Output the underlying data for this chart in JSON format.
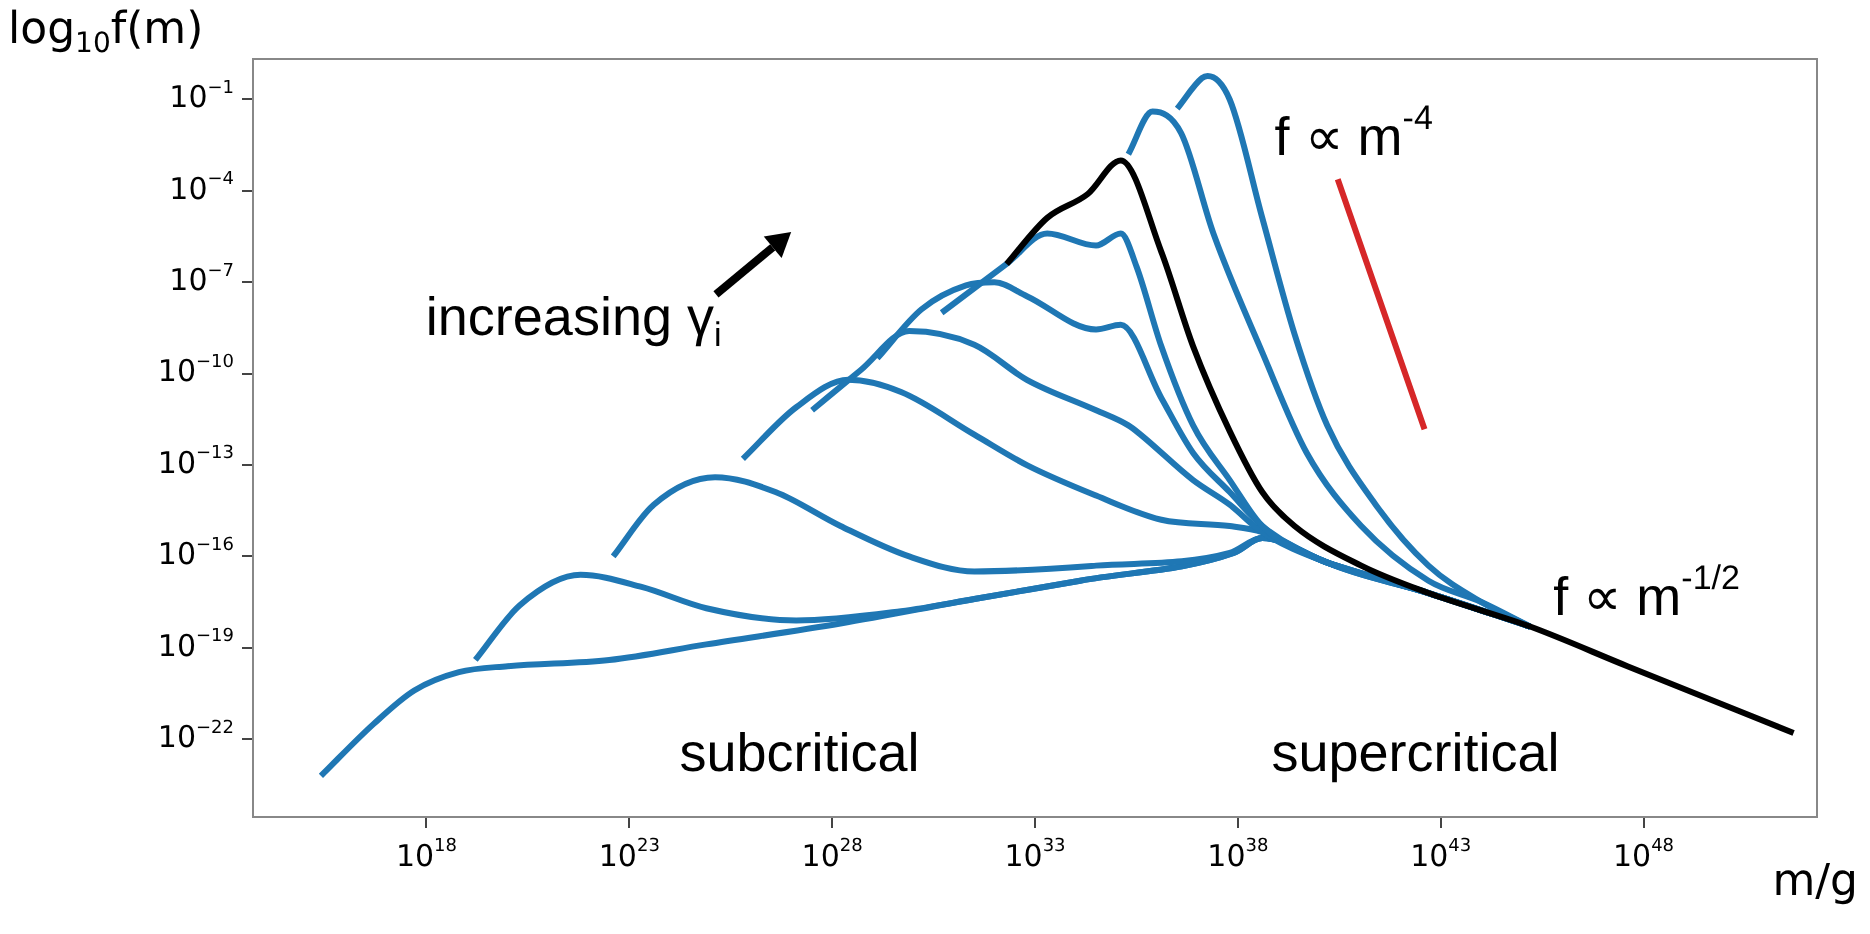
{
  "chart_data": {
    "type": "line",
    "log": "xy",
    "grid": false,
    "legend": false,
    "xlabel": "m/g",
    "ylabel": "log$_{10}$f(m)",
    "xlim": [
      50000000000000.0,
      2e+52
    ],
    "ylim": [
      2.6e-25,
      2.3
    ],
    "xticks": [
      {
        "value": 1e+18,
        "label": "10$^{18}$"
      },
      {
        "value": 1e+23,
        "label": "10$^{23}$"
      },
      {
        "value": 1e+28,
        "label": "10$^{28}$"
      },
      {
        "value": 1e+33,
        "label": "10$^{33}$"
      },
      {
        "value": 1e+38,
        "label": "10$^{38}$"
      },
      {
        "value": 1e+43,
        "label": "10$^{43}$"
      },
      {
        "value": 1e+48,
        "label": "10$^{48}$"
      }
    ],
    "yticks": [
      {
        "value": 0.1,
        "label": "10$^{−1}$"
      },
      {
        "value": 0.0001,
        "label": "10$^{−4}$"
      },
      {
        "value": 1e-07,
        "label": "10$^{−7}$"
      },
      {
        "value": 1e-10,
        "label": "10$^{−10}$"
      },
      {
        "value": 1e-13,
        "label": "10$^{−13}$"
      },
      {
        "value": 1e-16,
        "label": "10$^{−16}$"
      },
      {
        "value": 1e-19,
        "label": "10$^{−19}$"
      },
      {
        "value": 1e-22,
        "label": "10$^{−22}$"
      }
    ],
    "series": [
      {
        "color": "#1f77b4",
        "x": [
          2500000000000000.0,
          5e+16,
          5e+17,
          6.3e+18,
          1e+20,
          3.2e+22,
          7.9e+24,
          1.6e+28,
          3.2e+31,
          1.3e+34,
          7.9e+37,
          4e+38,
          1.6e+40,
          5e+42,
          1.6e+45
        ],
        "values": [
          6.3e-24,
          3.2e-22,
          4e-21,
          1.6e-20,
          2.5e-20,
          4e-20,
          1.3e-19,
          6.3e-19,
          4e-18,
          1.6e-17,
          1.3e-16,
          4e-16,
          6.3e-17,
          6.3e-18,
          5e-19
        ]
      },
      {
        "color": "#1f77b4",
        "x": [
          1.6e+19,
          2e+20,
          6.3e+21,
          2e+23,
          7.9e+24,
          1.3e+27,
          5e+29,
          3.2e+31,
          1.3e+34,
          7.9e+37,
          4e+38,
          1.6e+40,
          5e+42,
          1.6e+45
        ],
        "values": [
          4e-20,
          2.5e-18,
          2.5e-17,
          1e-17,
          2e-18,
          7.9e-19,
          1.6e-18,
          4e-18,
          1.6e-17,
          1.3e-16,
          4e-16,
          6.3e-17,
          6.3e-18,
          5e-19
        ]
      },
      {
        "color": "#1f77b4",
        "x": [
          4e+22,
          4e+23,
          1.3e+25,
          4e+26,
          1.6e+28,
          7.9e+29,
          3.2e+31,
          3.2e+34,
          6.3e+37,
          4e+38,
          1.6e+40,
          5e+42,
          1.6e+45
        ],
        "values": [
          1e-16,
          5e-15,
          4e-14,
          1.3e-14,
          1e-15,
          1e-16,
          3.2e-17,
          5e-17,
          1.3e-16,
          4e-16,
          6.3e-17,
          6.3e-18,
          5e-19
        ]
      },
      {
        "color": "#1f77b4",
        "x": [
          6.3e+25,
          1.3e+27,
          2.5e+28,
          5e+29,
          3.2e+31,
          6.3e+32,
          3.2e+34,
          1.3e+36,
          6.3e+37,
          4e+38,
          1.6e+40,
          5e+42,
          1.6e+45
        ],
        "values": [
          1.6e-13,
          7.9e-12,
          6.3e-11,
          2.5e-11,
          1e-12,
          1e-13,
          1e-14,
          1.6e-15,
          1e-15,
          6.3e-16,
          6.3e-17,
          6.3e-18,
          5e-19
        ]
      },
      {
        "color": "#1f77b4",
        "x": [
          3.2e+27,
          5e+28,
          7.9e+29,
          3.2e+31,
          6.3e+32,
          3.2e+34,
          2e+35,
          4e+35,
          7.9e+36,
          6.3e+37,
          4e+38,
          1.6e+40,
          5e+42,
          1.6e+45
        ],
        "values": [
          6.3e-12,
          1.3e-10,
          2.5e-09,
          8.9e-10,
          6.3e-11,
          6.3e-12,
          2e-12,
          1e-12,
          3.2e-14,
          5e-15,
          6.3e-16,
          6.3e-17,
          6.3e-18,
          5e-19
        ]
      },
      {
        "color": "#1f77b4",
        "x": [
          1.3e+29,
          1.6e+30,
          2e+31,
          1e+32,
          6.3e+32,
          3.2e+34,
          1.3e+35,
          1.3e+36,
          7.9e+36,
          6.3e+37,
          4e+38,
          1.6e+40,
          5e+42,
          1.6e+45
        ],
        "values": [
          3.2e-10,
          1.3e-08,
          7.9e-08,
          1e-07,
          3.5e-08,
          2.8e-09,
          4e-09,
          1.6e-11,
          2.5e-13,
          1.3e-14,
          1e-15,
          6.3e-17,
          6.3e-18,
          5e-19
        ]
      },
      {
        "color": "#1f77b4",
        "x": [
          5e+30,
          2e+32,
          2e+33,
          3.2e+34,
          1.3e+35,
          3.2e+35,
          1.3e+36,
          7.9e+36,
          6.3e+37,
          4e+38,
          1.6e+40,
          5e+42,
          1.6e+45
        ],
        "values": [
          1e-08,
          4e-07,
          4e-06,
          1.6e-06,
          4e-06,
          3.2e-07,
          7.9e-10,
          2e-12,
          3.2e-14,
          1e-15,
          6.3e-17,
          6.3e-18,
          5e-19
        ]
      },
      {
        "color": "#1f77b4",
        "x": [
          2e+35,
          7.9e+35,
          4e+36,
          2.5e+37,
          4e+38,
          5e+39,
          1.1e+41,
          5e+42,
          1e+44,
          1.6e+45
        ],
        "values": [
          0.0016,
          0.04,
          0.0079,
          4e-06,
          5e-10,
          2.5e-13,
          1e-15,
          1.6e-17,
          3.2e-18,
          5e-19
        ]
      },
      {
        "color": "#1f77b4",
        "x": [
          3.2e+36,
          1.3e+37,
          1.8e+37,
          6.3e+37,
          4e+38,
          2.5e+39,
          1.6e+40,
          2.5e+41,
          5e+42,
          1e+44,
          1.6e+45
        ],
        "values": [
          0.05,
          0.5,
          0.59,
          0.1,
          1.3e-05,
          2e-09,
          2e-12,
          5e-15,
          5e-17,
          3.2e-18,
          5e-19
        ]
      },
      {
        "color": "#000000",
        "x": [
          2e+32,
          2e+33,
          2e+34,
          1.3e+35,
          1.3e+36,
          7.9e+36,
          6.3e+37,
          4e+38,
          2.5e+39,
          1.1e+41,
          5e+42,
          1.6e+45,
          4e+47,
          5e+51
        ],
        "values": [
          4e-07,
          1.3e-05,
          7.9e-05,
          0.001,
          1e-06,
          7.9e-10,
          1.3e-12,
          1.3e-14,
          1e-15,
          5e-17,
          6.3e-18,
          5e-19,
          2.5e-20,
          1.6e-22
        ]
      },
      {
        "color": "#d62728",
        "x": [
          2.9e+40,
          4e+42
        ],
        "values": [
          0.00024,
          1.5e-12
        ]
      }
    ],
    "annotations": [
      "increasing γ$_{i}$",
      "subcritical",
      "supercritical",
      "f ∝ m$^{-4}$",
      "f ∝ m$^{-1/2}$"
    ]
  }
}
